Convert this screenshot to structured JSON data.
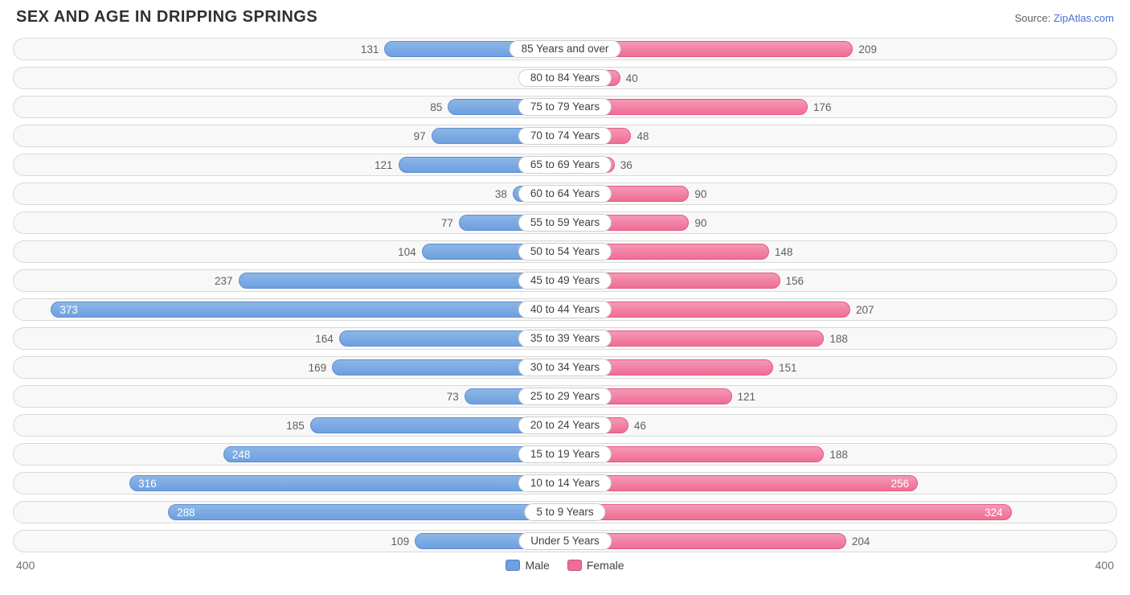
{
  "header": {
    "title": "SEX AND AGE IN DRIPPING SPRINGS",
    "source_prefix": "Source: ",
    "source_link": "ZipAtlas.com"
  },
  "chart": {
    "type": "diverging-bar",
    "axis_max": 400,
    "axis_left_label": "400",
    "axis_right_label": "400",
    "male_color": "#6e9fe0",
    "female_color": "#ef6d94",
    "row_bg": "#f8f8f8",
    "row_border": "#d9d9d9",
    "label_inside_threshold": 240,
    "rows": [
      {
        "label": "85 Years and over",
        "male": 131,
        "female": 209
      },
      {
        "label": "80 to 84 Years",
        "male": 2,
        "female": 40
      },
      {
        "label": "75 to 79 Years",
        "male": 85,
        "female": 176
      },
      {
        "label": "70 to 74 Years",
        "male": 97,
        "female": 48
      },
      {
        "label": "65 to 69 Years",
        "male": 121,
        "female": 36
      },
      {
        "label": "60 to 64 Years",
        "male": 38,
        "female": 90
      },
      {
        "label": "55 to 59 Years",
        "male": 77,
        "female": 90
      },
      {
        "label": "50 to 54 Years",
        "male": 104,
        "female": 148
      },
      {
        "label": "45 to 49 Years",
        "male": 237,
        "female": 156
      },
      {
        "label": "40 to 44 Years",
        "male": 373,
        "female": 207
      },
      {
        "label": "35 to 39 Years",
        "male": 164,
        "female": 188
      },
      {
        "label": "30 to 34 Years",
        "male": 169,
        "female": 151
      },
      {
        "label": "25 to 29 Years",
        "male": 73,
        "female": 121
      },
      {
        "label": "20 to 24 Years",
        "male": 185,
        "female": 46
      },
      {
        "label": "15 to 19 Years",
        "male": 248,
        "female": 188
      },
      {
        "label": "10 to 14 Years",
        "male": 316,
        "female": 256
      },
      {
        "label": "5 to 9 Years",
        "male": 288,
        "female": 324
      },
      {
        "label": "Under 5 Years",
        "male": 109,
        "female": 204
      }
    ]
  },
  "legend": {
    "male": "Male",
    "female": "Female"
  }
}
